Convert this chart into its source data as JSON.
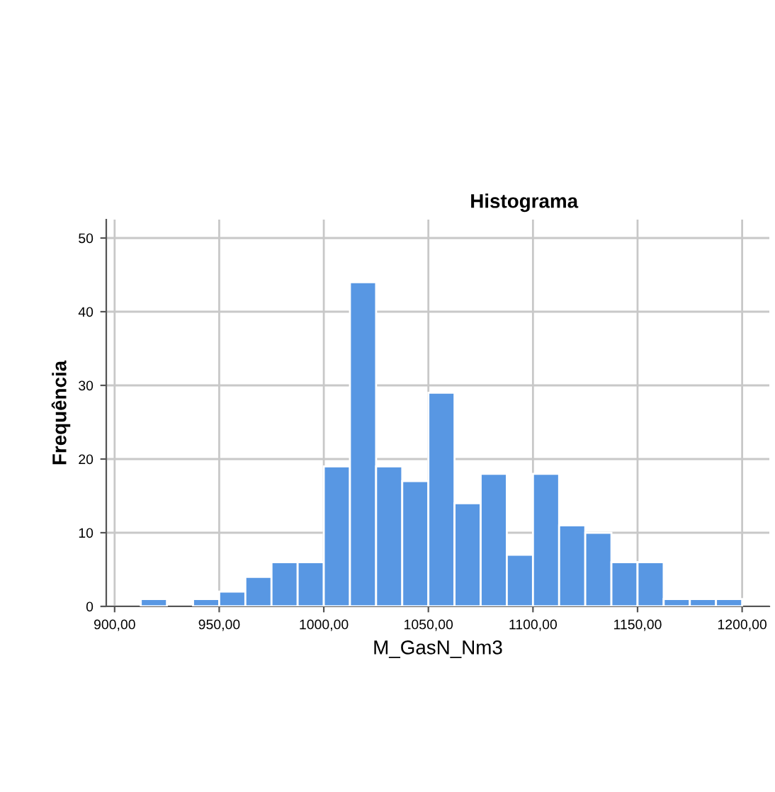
{
  "chart_data": {
    "type": "histogram",
    "title": "Histograma",
    "xlabel": "M_GasN_Nm3",
    "ylabel": "Frequência",
    "bins": [
      900,
      912.5,
      925,
      937.5,
      950,
      962.5,
      975,
      987.5,
      1000,
      1012.5,
      1025,
      1037.5,
      1050,
      1062.5,
      1075,
      1087.5,
      1100,
      1112.5,
      1125,
      1137.5,
      1150,
      1162.5,
      1175,
      1187.5,
      1200
    ],
    "values": [
      0,
      1,
      0,
      1,
      2,
      4,
      6,
      6,
      19,
      44,
      19,
      17,
      29,
      14,
      18,
      7,
      18,
      11,
      10,
      6,
      6,
      1,
      1,
      1
    ],
    "color": "#5897e3",
    "xlim": [
      896,
      1213
    ],
    "ylim": [
      0,
      52.5
    ],
    "xticks": [
      {
        "value": 900,
        "label": "900,00"
      },
      {
        "value": 950,
        "label": "950,00"
      },
      {
        "value": 1000,
        "label": "1000,00"
      },
      {
        "value": 1050,
        "label": "1050,00"
      },
      {
        "value": 1100,
        "label": "1100,00"
      },
      {
        "value": 1150,
        "label": "1150,00"
      },
      {
        "value": 1200,
        "label": "1200,00"
      }
    ],
    "yticks": [
      0,
      10,
      20,
      30,
      40,
      50
    ],
    "grid": true
  }
}
